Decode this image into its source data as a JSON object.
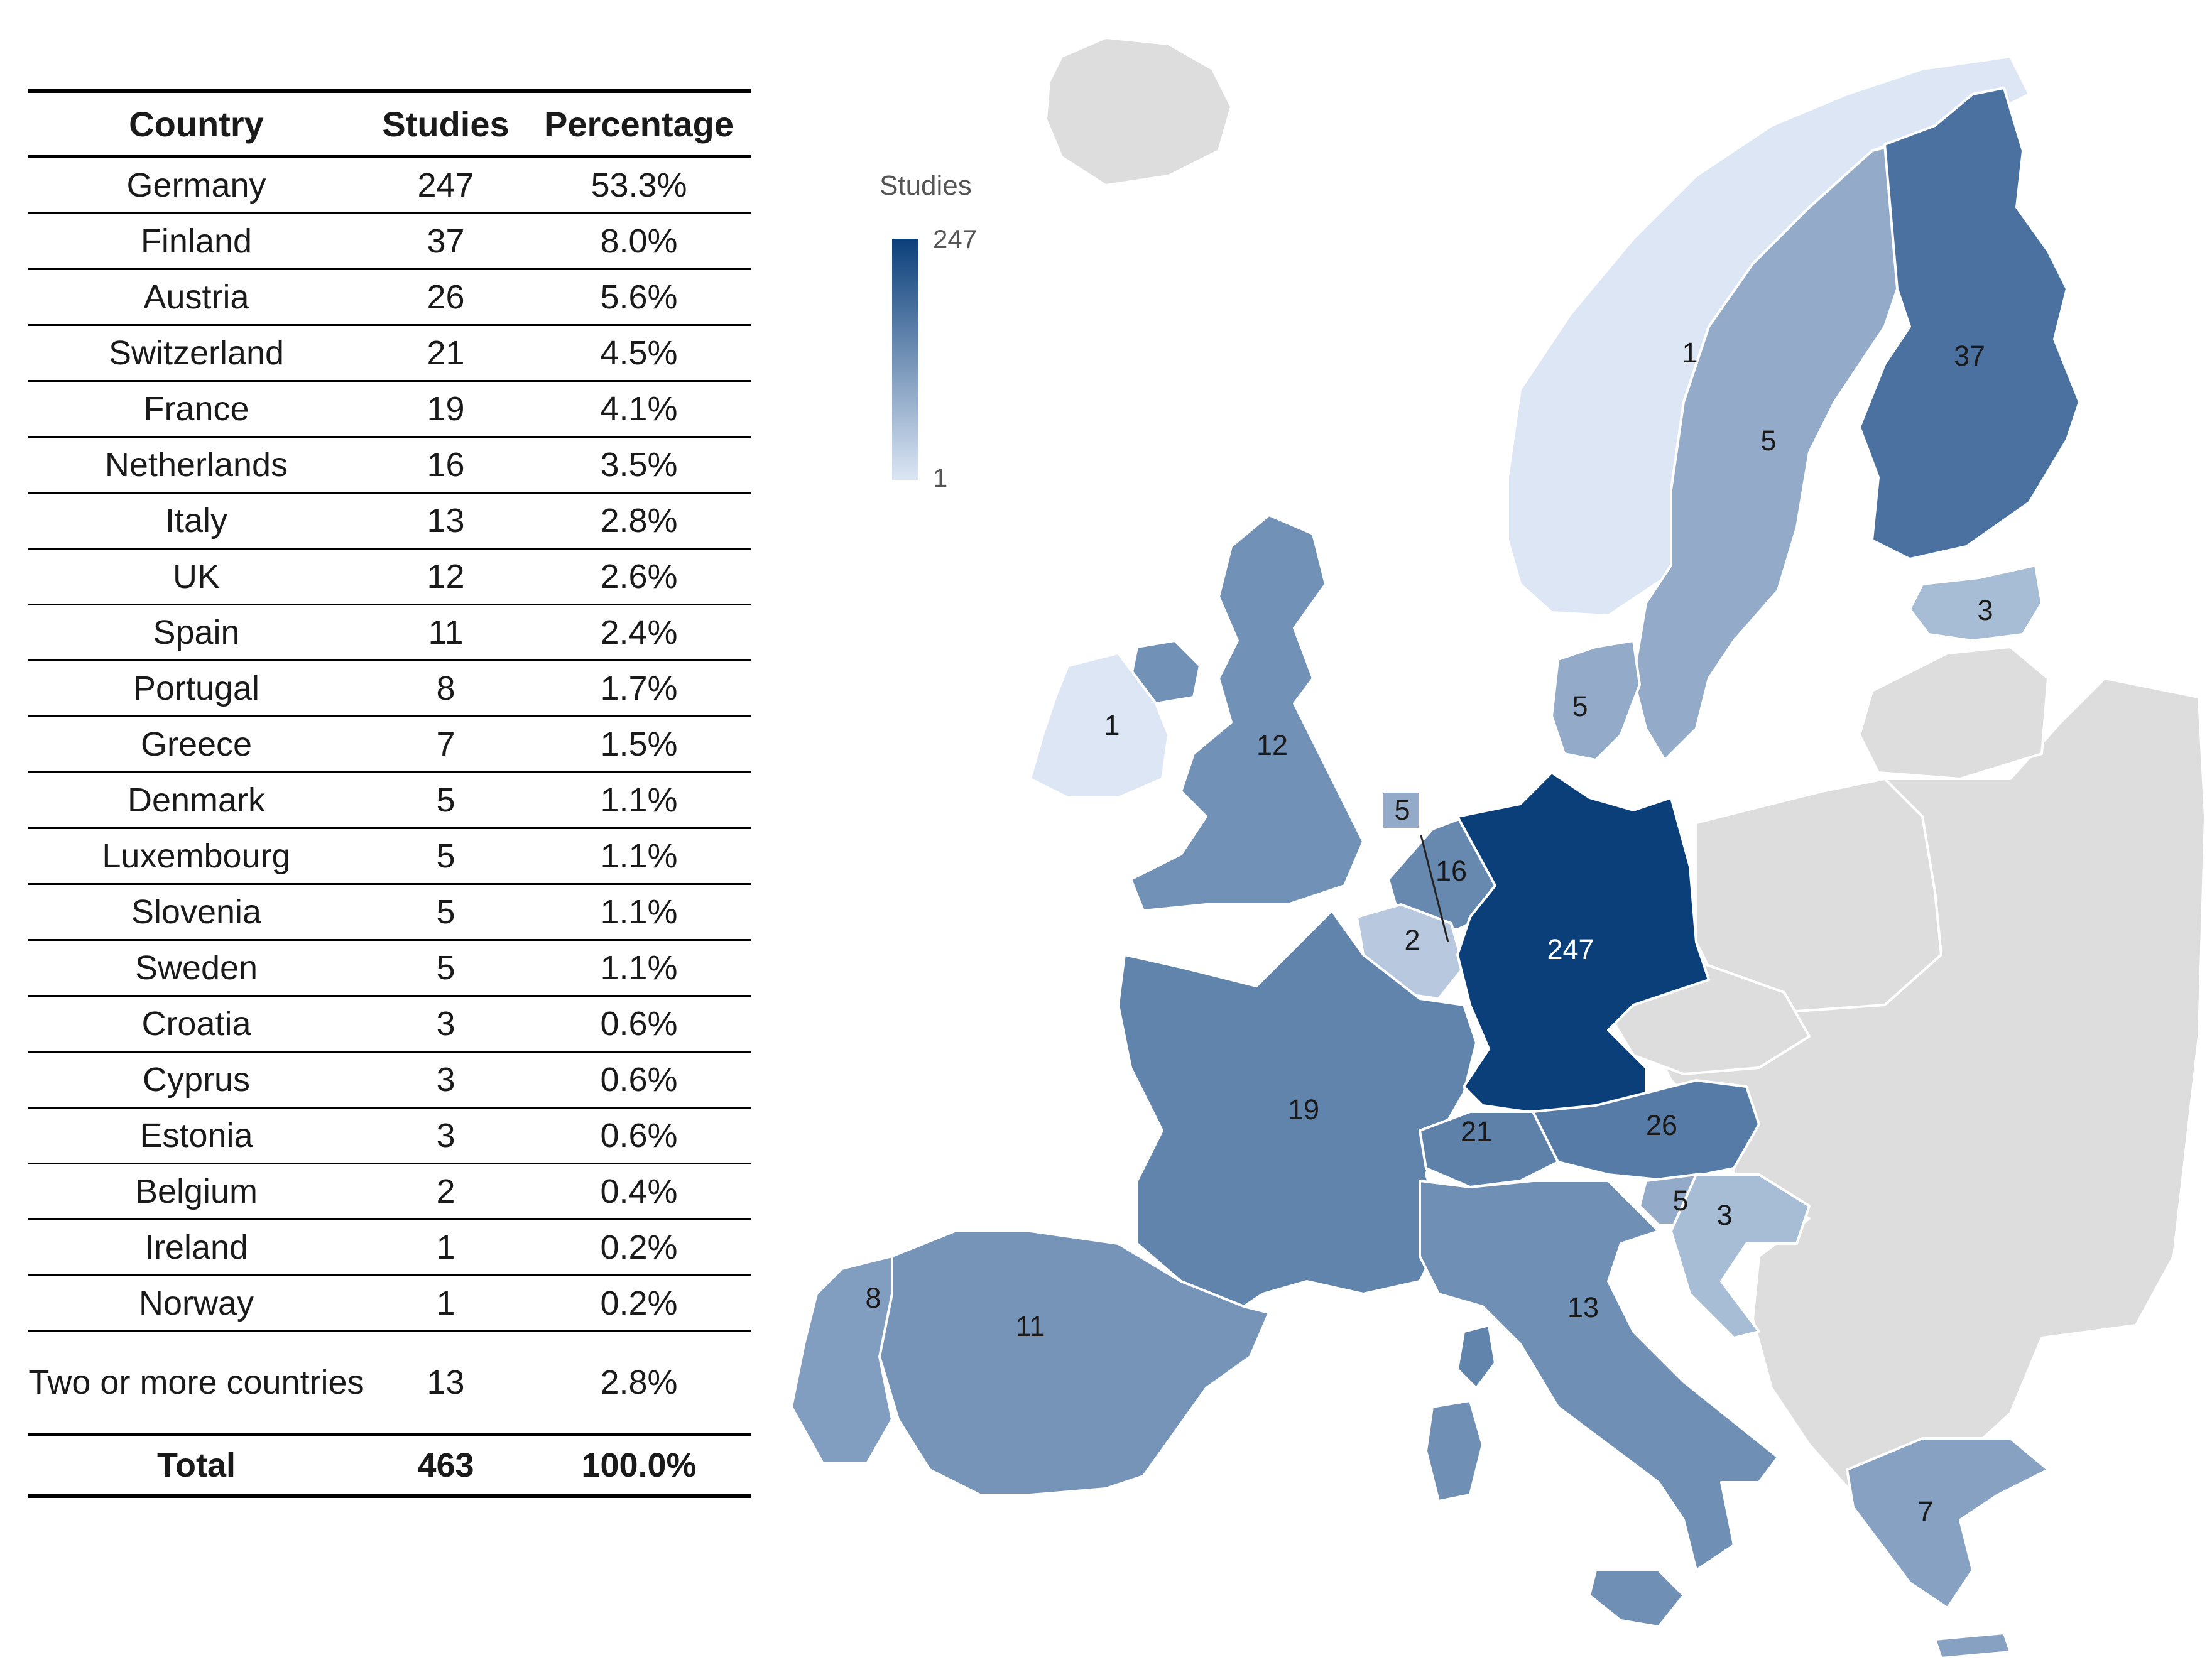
{
  "table": {
    "headers": [
      "Country",
      "Studies",
      "Percentage"
    ],
    "rows": [
      {
        "country": "Germany",
        "studies": "247",
        "percentage": "53.3%"
      },
      {
        "country": "Finland",
        "studies": "37",
        "percentage": "8.0%"
      },
      {
        "country": "Austria",
        "studies": "26",
        "percentage": "5.6%"
      },
      {
        "country": "Switzerland",
        "studies": "21",
        "percentage": "4.5%"
      },
      {
        "country": "France",
        "studies": "19",
        "percentage": "4.1%"
      },
      {
        "country": "Netherlands",
        "studies": "16",
        "percentage": "3.5%"
      },
      {
        "country": "Italy",
        "studies": "13",
        "percentage": "2.8%"
      },
      {
        "country": "UK",
        "studies": "12",
        "percentage": "2.6%"
      },
      {
        "country": "Spain",
        "studies": "11",
        "percentage": "2.4%"
      },
      {
        "country": "Portugal",
        "studies": "8",
        "percentage": "1.7%"
      },
      {
        "country": "Greece",
        "studies": "7",
        "percentage": "1.5%"
      },
      {
        "country": "Denmark",
        "studies": "5",
        "percentage": "1.1%"
      },
      {
        "country": "Luxembourg",
        "studies": "5",
        "percentage": "1.1%"
      },
      {
        "country": "Slovenia",
        "studies": "5",
        "percentage": "1.1%"
      },
      {
        "country": "Sweden",
        "studies": "5",
        "percentage": "1.1%"
      },
      {
        "country": "Croatia",
        "studies": "3",
        "percentage": "0.6%"
      },
      {
        "country": "Cyprus",
        "studies": "3",
        "percentage": "0.6%"
      },
      {
        "country": "Estonia",
        "studies": "3",
        "percentage": "0.6%"
      },
      {
        "country": "Belgium",
        "studies": "2",
        "percentage": "0.4%"
      },
      {
        "country": "Ireland",
        "studies": "1",
        "percentage": "0.2%"
      },
      {
        "country": "Norway",
        "studies": "1",
        "percentage": "0.2%"
      }
    ],
    "multi_row": {
      "country": "Two or more countries",
      "studies": "13",
      "percentage": "2.8%"
    },
    "total_row": {
      "country": "Total",
      "studies": "463",
      "percentage": "100.0%"
    }
  },
  "map": {
    "legend": {
      "title": "Studies",
      "max_label": "247",
      "min_label": "1",
      "color_max": "#0b3f7a",
      "color_min": "#dce6f4"
    },
    "no_data_color": "#dddddd",
    "labels": {
      "germany": "247",
      "finland": "37",
      "austria": "26",
      "switzerland": "21",
      "france": "19",
      "netherlands": "16",
      "italy": "13",
      "uk": "12",
      "spain": "11",
      "portugal": "8",
      "greece": "7",
      "denmark": "5",
      "luxembourg": "5",
      "slovenia": "5",
      "sweden": "5",
      "croatia": "3",
      "estonia": "3",
      "belgium": "2",
      "ireland": "1",
      "norway": "1"
    },
    "values": {
      "germany": 247,
      "finland": 37,
      "austria": 26,
      "switzerland": 21,
      "france": 19,
      "netherlands": 16,
      "italy": 13,
      "uk": 12,
      "spain": 11,
      "portugal": 8,
      "greece": 7,
      "denmark": 5,
      "luxembourg": 5,
      "slovenia": 5,
      "sweden": 5,
      "croatia": 3,
      "estonia": 3,
      "belgium": 2,
      "ireland": 1,
      "norway": 1
    }
  }
}
